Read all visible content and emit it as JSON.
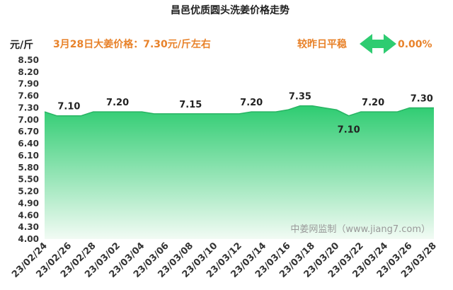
{
  "header": {
    "title": "昌邑优质圆头洗姜价格走势",
    "unit": "元/斤",
    "price_text": "3月28日大姜价格：7.30元/斤左右",
    "compare_label": "较昨日平稳",
    "compare_value": "0.00%",
    "accent_color": "#e8822a",
    "arrow_color": "#2ecc71"
  },
  "watermark": "中姜网监制（www.jiang7.com）",
  "chart_data": {
    "type": "area",
    "title": "昌邑优质圆头洗姜价格走势",
    "ylabel": "元/斤",
    "ylim": [
      4.0,
      8.5
    ],
    "yticks": [
      "4.00",
      "4.30",
      "4.60",
      "4.90",
      "5.20",
      "5.50",
      "5.80",
      "6.10",
      "6.40",
      "6.70",
      "7.00",
      "7.30",
      "7.60",
      "7.90",
      "8.20",
      "8.50"
    ],
    "xticks": [
      "23/02/24",
      "23/02/26",
      "23/02/28",
      "23/03/02",
      "23/03/04",
      "23/03/06",
      "23/03/08",
      "23/03/10",
      "23/03/12",
      "23/03/14",
      "23/03/16",
      "23/03/18",
      "23/03/20",
      "23/03/22",
      "23/03/24",
      "23/03/26",
      "23/03/28"
    ],
    "x": [
      "23/02/24",
      "23/02/25",
      "23/02/26",
      "23/02/27",
      "23/02/28",
      "23/03/01",
      "23/03/02",
      "23/03/03",
      "23/03/04",
      "23/03/05",
      "23/03/06",
      "23/03/07",
      "23/03/08",
      "23/03/09",
      "23/03/10",
      "23/03/11",
      "23/03/12",
      "23/03/13",
      "23/03/14",
      "23/03/15",
      "23/03/16",
      "23/03/17",
      "23/03/18",
      "23/03/19",
      "23/03/20",
      "23/03/21",
      "23/03/22",
      "23/03/23",
      "23/03/24",
      "23/03/25",
      "23/03/26",
      "23/03/27",
      "23/03/28"
    ],
    "values": [
      7.2,
      7.1,
      7.1,
      7.1,
      7.2,
      7.2,
      7.2,
      7.2,
      7.2,
      7.15,
      7.15,
      7.15,
      7.15,
      7.15,
      7.15,
      7.15,
      7.15,
      7.2,
      7.2,
      7.2,
      7.25,
      7.35,
      7.35,
      7.3,
      7.25,
      7.1,
      7.2,
      7.2,
      7.2,
      7.2,
      7.3,
      7.3,
      7.3
    ],
    "data_labels": [
      {
        "x": "23/02/26",
        "y": 7.1,
        "text": "7.10"
      },
      {
        "x": "23/03/02",
        "y": 7.2,
        "text": "7.20"
      },
      {
        "x": "23/03/08",
        "y": 7.15,
        "text": "7.15"
      },
      {
        "x": "23/03/13",
        "y": 7.2,
        "text": "7.20"
      },
      {
        "x": "23/03/17",
        "y": 7.35,
        "text": "7.35"
      },
      {
        "x": "23/03/21",
        "y": 7.1,
        "text": "7.10"
      },
      {
        "x": "23/03/23",
        "y": 7.2,
        "text": "7.20"
      },
      {
        "x": "23/03/27",
        "y": 7.3,
        "text": "7.30"
      }
    ],
    "grid": false,
    "fill_color_top": "#2ecc71",
    "fill_color_bottom": "#f2fbf4",
    "line_color": "#28b463"
  }
}
